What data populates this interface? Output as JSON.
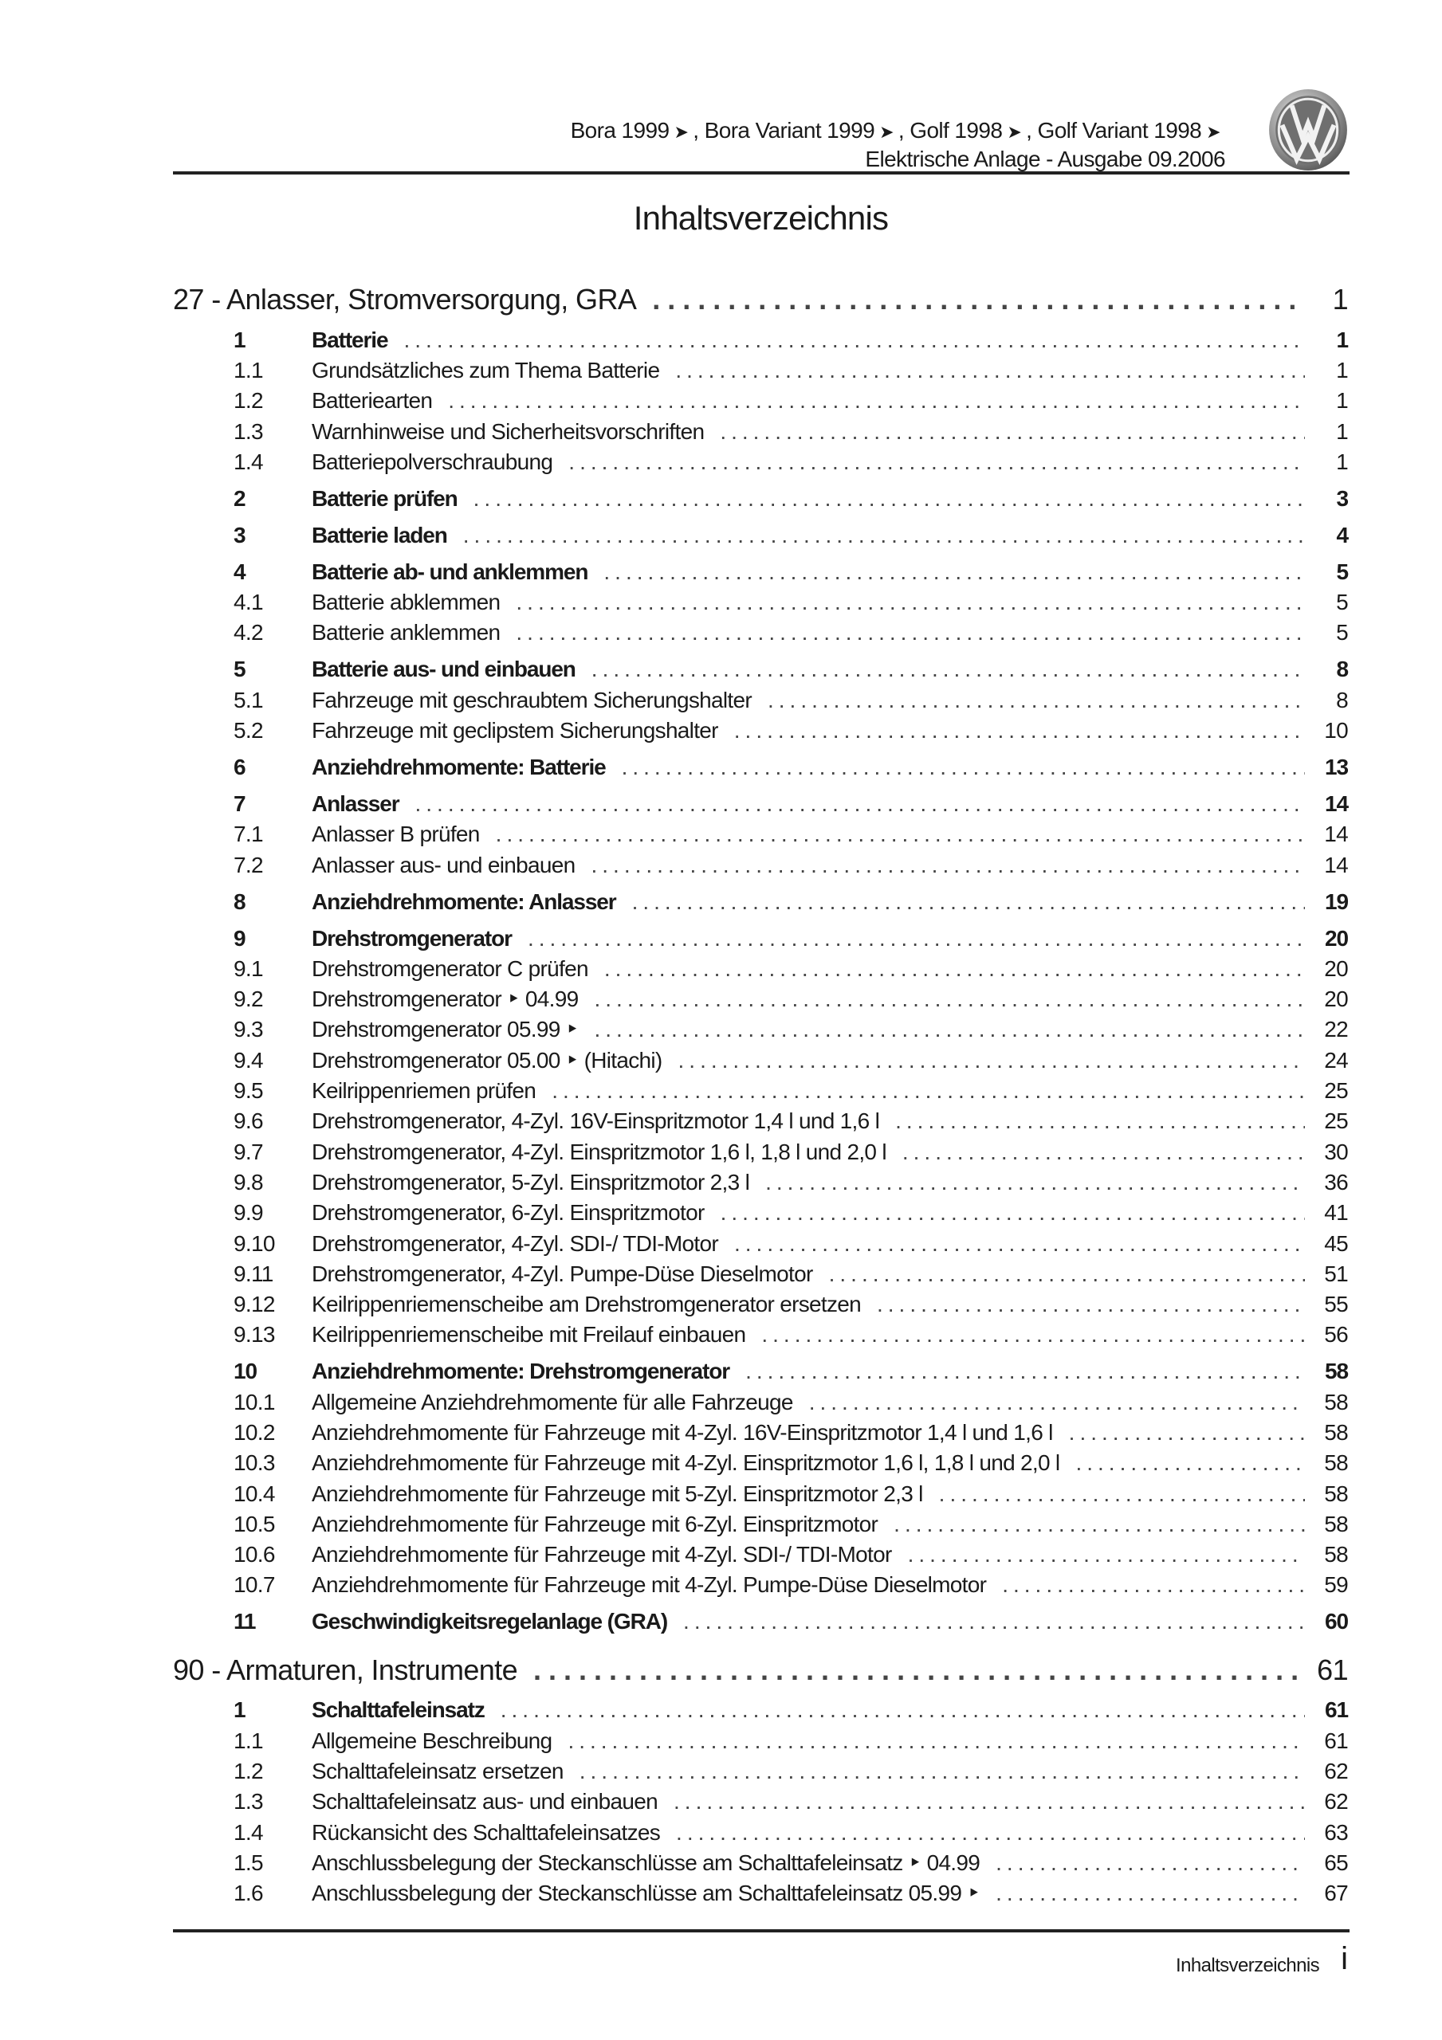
{
  "header": {
    "models": [
      "Bora 1999",
      ", Bora Variant 1999",
      ", Golf 1998",
      ", Golf Variant 1998"
    ],
    "arrow_glyph": "➤",
    "subtitle": "Elektrische Anlage - Ausgabe 09.2006",
    "logo": "Volkswagen VW logo"
  },
  "title": "Inhaltsverzeichnis",
  "toc": [
    {
      "level": "chapter",
      "num": "",
      "text": "27 - Anlasser, Stromversorgung, GRA",
      "page": "1"
    },
    {
      "level": "group",
      "num": "1",
      "text": "Batterie",
      "page": "1"
    },
    {
      "level": "sub",
      "num": "1.1",
      "text": "Grundsätzliches zum Thema Batterie",
      "page": "1"
    },
    {
      "level": "sub",
      "num": "1.2",
      "text": "Batteriearten",
      "page": "1"
    },
    {
      "level": "sub",
      "num": "1.3",
      "text": "Warnhinweise und Sicherheitsvorschriften",
      "page": "1"
    },
    {
      "level": "sub",
      "num": "1.4",
      "text": "Batteriepolverschraubung",
      "page": "1"
    },
    {
      "level": "group",
      "num": "2",
      "text": "Batterie prüfen",
      "page": "3"
    },
    {
      "level": "group",
      "num": "3",
      "text": "Batterie laden",
      "page": "4"
    },
    {
      "level": "group",
      "num": "4",
      "text": "Batterie ab- und anklemmen",
      "page": "5"
    },
    {
      "level": "sub",
      "num": "4.1",
      "text": "Batterie abklemmen",
      "page": "5"
    },
    {
      "level": "sub",
      "num": "4.2",
      "text": "Batterie anklemmen",
      "page": "5"
    },
    {
      "level": "group",
      "num": "5",
      "text": "Batterie aus- und einbauen",
      "page": "8"
    },
    {
      "level": "sub",
      "num": "5.1",
      "text": "Fahrzeuge mit geschraubtem Sicherungshalter",
      "page": "8"
    },
    {
      "level": "sub",
      "num": "5.2",
      "text": "Fahrzeuge mit geclipstem Sicherungshalter",
      "page": "10"
    },
    {
      "level": "group",
      "num": "6",
      "text": "Anziehdrehmomente: Batterie",
      "page": "13"
    },
    {
      "level": "group",
      "num": "7",
      "text": "Anlasser",
      "page": "14"
    },
    {
      "level": "sub",
      "num": "7.1",
      "text": "Anlasser B prüfen",
      "page": "14"
    },
    {
      "level": "sub",
      "num": "7.2",
      "text": "Anlasser aus- und einbauen",
      "page": "14"
    },
    {
      "level": "group",
      "num": "8",
      "text": "Anziehdrehmomente: Anlasser",
      "page": "19"
    },
    {
      "level": "group",
      "num": "9",
      "text": "Drehstromgenerator",
      "page": "20"
    },
    {
      "level": "sub",
      "num": "9.1",
      "text": "Drehstromgenerator C prüfen",
      "page": "20"
    },
    {
      "level": "sub",
      "num": "9.2",
      "text": "Drehstromgenerator ‣ 04.99",
      "page": "20"
    },
    {
      "level": "sub",
      "num": "9.3",
      "text": "Drehstromgenerator 05.99 ‣",
      "page": "22"
    },
    {
      "level": "sub",
      "num": "9.4",
      "text": "Drehstromgenerator 05.00 ‣ (Hitachi)",
      "page": "24"
    },
    {
      "level": "sub",
      "num": "9.5",
      "text": "Keilrippenriemen prüfen",
      "page": "25"
    },
    {
      "level": "sub",
      "num": "9.6",
      "text": "Drehstromgenerator, 4-Zyl. 16V-Einspritzmotor 1,4 l und 1,6 l",
      "page": "25"
    },
    {
      "level": "sub",
      "num": "9.7",
      "text": "Drehstromgenerator, 4-Zyl. Einspritzmotor 1,6 l, 1,8 l und 2,0 l",
      "page": "30"
    },
    {
      "level": "sub",
      "num": "9.8",
      "text": "Drehstromgenerator, 5-Zyl. Einspritzmotor 2,3 l",
      "page": "36"
    },
    {
      "level": "sub",
      "num": "9.9",
      "text": "Drehstromgenerator, 6-Zyl. Einspritzmotor",
      "page": "41"
    },
    {
      "level": "sub",
      "num": "9.10",
      "text": "Drehstromgenerator, 4-Zyl. SDI-/ TDI-Motor",
      "page": "45"
    },
    {
      "level": "sub",
      "num": "9.11",
      "text": "Drehstromgenerator, 4-Zyl. Pumpe-Düse Dieselmotor",
      "page": "51"
    },
    {
      "level": "sub",
      "num": "9.12",
      "text": "Keilrippenriemenscheibe am Drehstromgenerator ersetzen",
      "page": "55"
    },
    {
      "level": "sub",
      "num": "9.13",
      "text": "Keilrippenriemenscheibe mit Freilauf einbauen",
      "page": "56"
    },
    {
      "level": "group",
      "num": "10",
      "text": "Anziehdrehmomente: Drehstromgenerator",
      "page": "58"
    },
    {
      "level": "sub",
      "num": "10.1",
      "text": "Allgemeine Anziehdrehmomente für alle Fahrzeuge",
      "page": "58"
    },
    {
      "level": "sub",
      "num": "10.2",
      "text": "Anziehdrehmomente für Fahrzeuge mit 4-Zyl. 16V-Einspritzmotor 1,4 l und 1,6 l",
      "page": "58"
    },
    {
      "level": "sub",
      "num": "10.3",
      "text": "Anziehdrehmomente für Fahrzeuge mit 4-Zyl. Einspritzmotor 1,6 l, 1,8 l und 2,0 l",
      "page": "58"
    },
    {
      "level": "sub",
      "num": "10.4",
      "text": "Anziehdrehmomente für Fahrzeuge mit 5-Zyl. Einspritzmotor 2,3 l",
      "page": "58"
    },
    {
      "level": "sub",
      "num": "10.5",
      "text": "Anziehdrehmomente für Fahrzeuge mit 6-Zyl. Einspritzmotor",
      "page": "58"
    },
    {
      "level": "sub",
      "num": "10.6",
      "text": "Anziehdrehmomente für Fahrzeuge mit 4-Zyl. SDI-/ TDI-Motor",
      "page": "58"
    },
    {
      "level": "sub",
      "num": "10.7",
      "text": "Anziehdrehmomente für Fahrzeuge mit 4-Zyl. Pumpe-Düse Dieselmotor",
      "page": "59"
    },
    {
      "level": "group",
      "num": "11",
      "text": "Geschwindigkeitsregelanlage (GRA)",
      "page": "60"
    },
    {
      "level": "chapter",
      "num": "",
      "text": "90 - Armaturen, Instrumente",
      "page": "61"
    },
    {
      "level": "group",
      "num": "1",
      "text": "Schalttafeleinsatz",
      "page": "61"
    },
    {
      "level": "sub",
      "num": "1.1",
      "text": "Allgemeine Beschreibung",
      "page": "61"
    },
    {
      "level": "sub",
      "num": "1.2",
      "text": "Schalttafeleinsatz ersetzen",
      "page": "62"
    },
    {
      "level": "sub",
      "num": "1.3",
      "text": "Schalttafeleinsatz aus- und einbauen",
      "page": "62"
    },
    {
      "level": "sub",
      "num": "1.4",
      "text": "Rückansicht des Schalttafeleinsatzes",
      "page": "63"
    },
    {
      "level": "sub",
      "num": "1.5",
      "text": "Anschlussbelegung der Steckanschlüsse am Schalttafeleinsatz ‣ 04.99",
      "page": "65"
    },
    {
      "level": "sub",
      "num": "1.6",
      "text": "Anschlussbelegung der Steckanschlüsse am Schalttafeleinsatz 05.99 ‣",
      "page": "67"
    }
  ],
  "footer": {
    "label": "Inhaltsverzeichnis",
    "page": "i"
  }
}
